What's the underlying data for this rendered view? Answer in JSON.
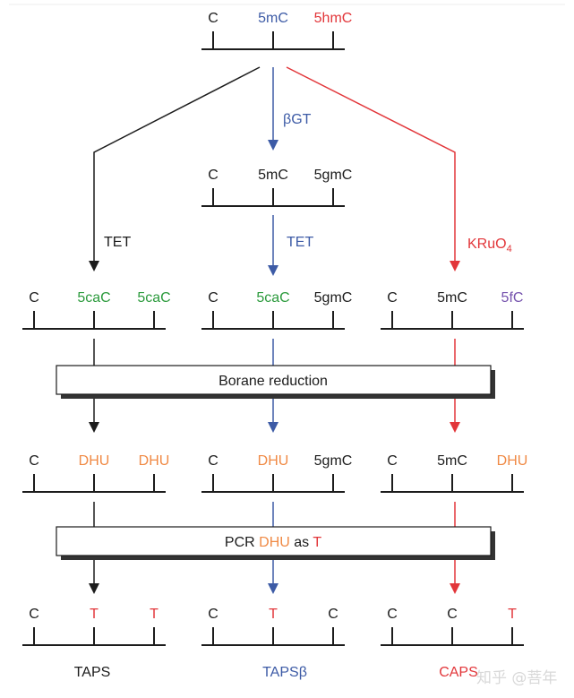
{
  "colors": {
    "black": "#1c1c1c",
    "blue": "#3d5ba6",
    "red": "#e2363a",
    "green": "#2b9a3c",
    "orange": "#f08a45",
    "purple": "#7552ad"
  },
  "top_strand": [
    {
      "text": "C",
      "color": "black"
    },
    {
      "text": "5mC",
      "color": "blue"
    },
    {
      "text": "5hmC",
      "color": "red"
    }
  ],
  "bgt_strand": [
    {
      "text": "C",
      "color": "black"
    },
    {
      "text": "5mC",
      "color": "black"
    },
    {
      "text": "5gmC",
      "color": "black"
    }
  ],
  "arrow_labels": {
    "left_tet": "TET",
    "bgt": "βGT",
    "center_tet": "TET",
    "kruo4": "KRuO",
    "kruo4_sub": "4"
  },
  "rows": [
    [
      [
        {
          "text": "C",
          "color": "black"
        },
        {
          "text": "5caC",
          "color": "green"
        },
        {
          "text": "5caC",
          "color": "green"
        }
      ],
      [
        {
          "text": "C",
          "color": "black"
        },
        {
          "text": "5caC",
          "color": "green"
        },
        {
          "text": "5gmC",
          "color": "black"
        }
      ],
      [
        {
          "text": "C",
          "color": "black"
        },
        {
          "text": "5mC",
          "color": "black"
        },
        {
          "text": "5fC",
          "color": "purple"
        }
      ]
    ],
    [
      [
        {
          "text": "C",
          "color": "black"
        },
        {
          "text": "DHU",
          "color": "orange"
        },
        {
          "text": "DHU",
          "color": "orange"
        }
      ],
      [
        {
          "text": "C",
          "color": "black"
        },
        {
          "text": "DHU",
          "color": "orange"
        },
        {
          "text": "5gmC",
          "color": "black"
        }
      ],
      [
        {
          "text": "C",
          "color": "black"
        },
        {
          "text": "5mC",
          "color": "black"
        },
        {
          "text": "DHU",
          "color": "orange"
        }
      ]
    ],
    [
      [
        {
          "text": "C",
          "color": "black"
        },
        {
          "text": "T",
          "color": "red"
        },
        {
          "text": "T",
          "color": "red"
        }
      ],
      [
        {
          "text": "C",
          "color": "black"
        },
        {
          "text": "T",
          "color": "red"
        },
        {
          "text": "C",
          "color": "black"
        }
      ],
      [
        {
          "text": "C",
          "color": "black"
        },
        {
          "text": "C",
          "color": "black"
        },
        {
          "text": "T",
          "color": "red"
        }
      ]
    ]
  ],
  "boxes": {
    "borane": "Borane reduction",
    "pcr_prefix": "PCR ",
    "pcr_dhu": "DHU",
    "pcr_as": " as ",
    "pcr_t": "T"
  },
  "methods": [
    {
      "text": "TAPS",
      "color": "black"
    },
    {
      "text": "TAPSβ",
      "color": "blue"
    },
    {
      "text": "CAPS",
      "color": "red"
    }
  ],
  "watermark": "知乎 @菩年"
}
